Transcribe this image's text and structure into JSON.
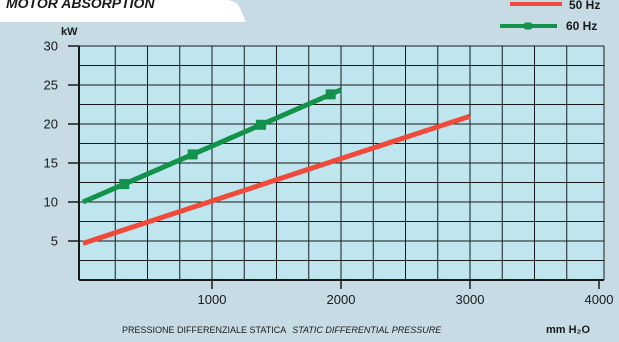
{
  "colors": {
    "background": "#c7dbe4",
    "plot_fill": "#bfe5ef",
    "grid": "#1a1a1a",
    "series_50hz": "#f04a3a",
    "series_60hz": "#12924a"
  },
  "chart_data": {
    "type": "line",
    "title": "MOTOR ABSORPTION",
    "xlabel": "PRESSIONE DIFFERENZIALE STATICA",
    "xlabel_en": "STATIC DIFFERENTIAL PRESSURE",
    "xunit": "mm H₂O",
    "ylabel": "kW",
    "xlim": [
      0,
      4000
    ],
    "ylim": [
      0,
      30
    ],
    "x_ticks": [
      1000,
      2000,
      3000,
      4000
    ],
    "y_ticks": [
      5,
      10,
      15,
      20,
      25,
      30
    ],
    "grid": true,
    "legend_position": "top-right",
    "series": [
      {
        "name": "50 Hz",
        "color": "#f04a3a",
        "marker": "none",
        "points": [
          [
            0,
            4.7
          ],
          [
            3000,
            21.0
          ]
        ]
      },
      {
        "name": "60 Hz",
        "color": "#12924a",
        "marker": "square",
        "points": [
          [
            0,
            10.0
          ],
          [
            320,
            12.3
          ],
          [
            850,
            16.1
          ],
          [
            1380,
            19.9
          ],
          [
            1920,
            23.8
          ],
          [
            2000,
            24.4
          ]
        ],
        "marker_points": [
          [
            320,
            12.3
          ],
          [
            850,
            16.1
          ],
          [
            1380,
            19.9
          ],
          [
            1920,
            23.8
          ]
        ]
      }
    ]
  }
}
